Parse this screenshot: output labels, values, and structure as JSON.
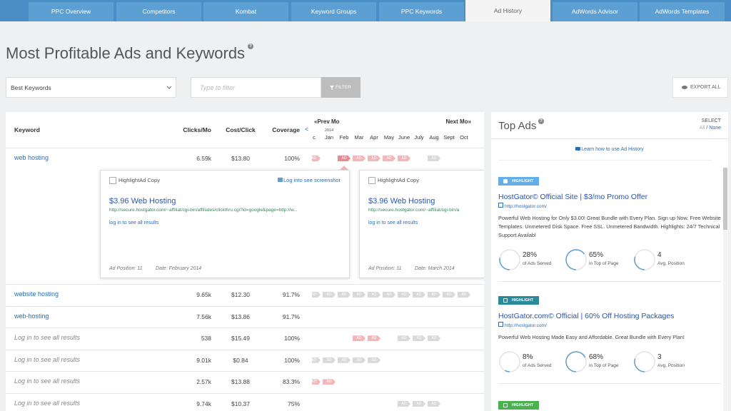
{
  "nav": {
    "tabs": [
      "PPC Overview",
      "Competitors",
      "Kombat",
      "Keyword Groups",
      "PPC Keywords",
      "Ad History",
      "AdWords Advisor",
      "AdWords Templates"
    ],
    "active": 5
  },
  "header": {
    "title": "Most Profitable Ads and Keywords",
    "help": "?"
  },
  "controls": {
    "dropdown": "Best Keywords",
    "filter_placeholder": "Type to filter",
    "filter_button": "FILTER",
    "export_button": "EXPORT ALL"
  },
  "table": {
    "columns": [
      "Keyword",
      "Clicks/Mo",
      "Cost/Click",
      "Coverage"
    ],
    "timeline": {
      "prev_arrow": "<",
      "prev": "«Prev Mo",
      "next": "Next Mo»",
      "year": "2014",
      "months": [
        "c",
        "Jan",
        "Feb",
        "Mar",
        "Apr",
        "May",
        "June",
        "July",
        "Aug",
        "Sept",
        "Oct"
      ],
      "badge": "AD"
    },
    "selected": {
      "row": 0,
      "month": 2
    },
    "rows": [
      {
        "keyword": "web hosting",
        "clicks": "6.59k",
        "cost": "$13.80",
        "coverage": "100%",
        "ads": [
          "active",
          null,
          "active",
          "active",
          "active",
          "active",
          "active",
          null,
          "inactive",
          null,
          null
        ]
      },
      {
        "keyword": "website hosting",
        "clicks": "9.65k",
        "cost": "$12.30",
        "coverage": "91.7%",
        "ads": [
          "inactive",
          "inactive",
          "inactive",
          "inactive",
          "inactive",
          "inactive",
          "inactive",
          "inactive",
          "inactive",
          "inactive",
          "inactive"
        ]
      },
      {
        "keyword": "web-hosting",
        "clicks": "7.56k",
        "cost": "$13.86",
        "coverage": "91.7%",
        "ads": [
          null,
          null,
          null,
          null,
          null,
          null,
          null,
          null,
          null,
          null,
          null
        ]
      },
      {
        "keyword": "Log in to see all results",
        "clicks": "538",
        "cost": "$15.49",
        "coverage": "100%",
        "ads": [
          null,
          null,
          null,
          "active",
          "active",
          null,
          "inactive",
          "inactive",
          "inactive",
          null,
          null
        ]
      },
      {
        "keyword": "Log in to see all results",
        "clicks": "9.01k",
        "cost": "$0.84",
        "coverage": "100%",
        "ads": [
          "inactive",
          "inactive",
          "inactive",
          "inactive",
          "inactive",
          null,
          null,
          null,
          null,
          null,
          null
        ]
      },
      {
        "keyword": "Log in to see all results",
        "clicks": "2.57k",
        "cost": "$13.88",
        "coverage": "83.3%",
        "ads": [
          "active",
          "active",
          null,
          null,
          null,
          null,
          null,
          null,
          null,
          null,
          null
        ]
      },
      {
        "keyword": "Log in to see all results",
        "clicks": "9.74k",
        "cost": "$10.37",
        "coverage": "75%",
        "ads": [
          null,
          null,
          null,
          null,
          null,
          null,
          "inactive",
          "inactive",
          "inactive",
          null,
          null
        ]
      }
    ],
    "cards": [
      {
        "checkbox_label": "HighlightAd Copy",
        "screenshot_link": "Log into see screenshot",
        "title": "$3.96 Web Hosting",
        "url": "http://secure.hostgator.com/~affiliat/cgi-bin/affiliates/clickthru.cgi?id=google&page=http://w...",
        "more": "log in to see all results",
        "position": "Ad Position: 11",
        "date": "Date: February 2014"
      },
      {
        "checkbox_label": "HighlightAd Copy",
        "title": "$3.96 Web Hosting",
        "url": "http://secure.hostgator.com/~affiliat/cgi-bin/a",
        "more": "log in to see all results",
        "position": "Ad Position: 11",
        "date": "Date: March 2014"
      }
    ]
  },
  "top_ads": {
    "title": "Top Ads",
    "help": "?",
    "select": "SELECT",
    "all": "All",
    "separator": "/",
    "none": "None",
    "learn": "Learn how to use Ad History",
    "ads": [
      {
        "badge": "HIGHLIGHT",
        "badge_color": "#66aee8",
        "checked": false,
        "title": "HostGator© Official Site | $3/mo Promo Offer",
        "url": "http://hostgator.com/",
        "description": "Powerful Web Hosting for Only $3.00! Great Bundle with Every Plan. Sign up Now. Free Website Templates. Unmetered Disk Space. Free SSL. Unmetered Bandwidth. Highlights: 24/7 Technical Support Availabl",
        "stats": [
          {
            "value": 28,
            "label": "28%",
            "caption": "of Ads Served"
          },
          {
            "value": 65,
            "label": "65%",
            "caption": "in Top of Page"
          },
          {
            "value": 4,
            "label": "4",
            "caption": "Avg. Position"
          }
        ]
      },
      {
        "badge": "HIGHLIGHT",
        "badge_color": "#2b8a9a",
        "checked": true,
        "title": "HostGator.com© Official | 60% Off Hosting Packages",
        "url": "http://hostgator.com/",
        "description": "Powerful Web Hosting Made Easy and Affordable. Great Bundle with Every Plan!",
        "stats": [
          {
            "value": 8,
            "label": "8%",
            "caption": "of Ads Served"
          },
          {
            "value": 68,
            "label": "68%",
            "caption": "in Top of Page"
          },
          {
            "value": 3,
            "label": "3",
            "caption": "Avg. Position"
          }
        ]
      },
      {
        "badge": "HIGHLIGHT",
        "badge_color": "#4caf50",
        "checked": true
      }
    ]
  }
}
